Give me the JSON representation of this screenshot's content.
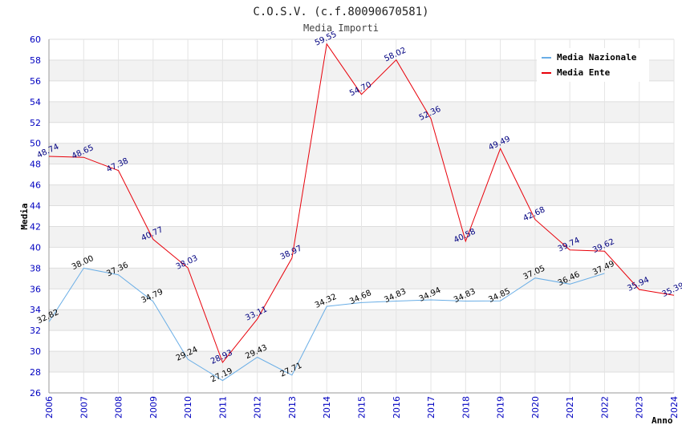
{
  "chart_data": {
    "type": "line",
    "title": "C.O.S.V. (c.f.80090670581)",
    "subtitle": "Media Importi",
    "xlabel": "Anno",
    "ylabel": "Media",
    "x": [
      "2006",
      "2007",
      "2008",
      "2009",
      "2010",
      "2011",
      "2012",
      "2013",
      "2014",
      "2015",
      "2016",
      "2017",
      "2018",
      "2019",
      "2020",
      "2021",
      "2022",
      "2023",
      "2024"
    ],
    "ylim": [
      26,
      60
    ],
    "yticks": [
      "26",
      "28",
      "30",
      "32",
      "34",
      "36",
      "38",
      "40",
      "42",
      "44",
      "46",
      "48",
      "50",
      "52",
      "54",
      "56",
      "58",
      "60"
    ],
    "grid": true,
    "legend_position": "top-right",
    "series": [
      {
        "name": "Media Nazionale",
        "color": "#6aaee6",
        "values": [
          32.82,
          38.0,
          37.36,
          34.79,
          29.24,
          27.19,
          29.43,
          27.71,
          34.32,
          34.68,
          34.83,
          34.94,
          34.83,
          34.85,
          37.05,
          36.46,
          37.49,
          null,
          null
        ],
        "labels": [
          "32.82",
          "38.00",
          "37.36",
          "34.79",
          "29.24",
          "27.19",
          "29.43",
          "27.71",
          "34.32",
          "34.68",
          "34.83",
          "34.94",
          "34.83",
          "34.85",
          "37.05",
          "36.46",
          "37.49",
          null,
          null
        ]
      },
      {
        "name": "Media Ente",
        "color": "#e8000a",
        "values": [
          48.74,
          48.65,
          47.38,
          40.77,
          38.03,
          28.93,
          33.11,
          38.97,
          59.55,
          54.7,
          58.02,
          52.36,
          40.58,
          49.49,
          42.68,
          39.74,
          39.62,
          35.94,
          35.39
        ],
        "labels": [
          "48.74",
          "48.65",
          "47.38",
          "40.77",
          "38.03",
          "28.93",
          "33.11",
          "38.97",
          "59.55",
          "54.70",
          "58.02",
          "52.36",
          "40.58",
          "49.49",
          "42.68",
          "39.74",
          "39.62",
          "35.94",
          "35.39"
        ]
      }
    ]
  }
}
